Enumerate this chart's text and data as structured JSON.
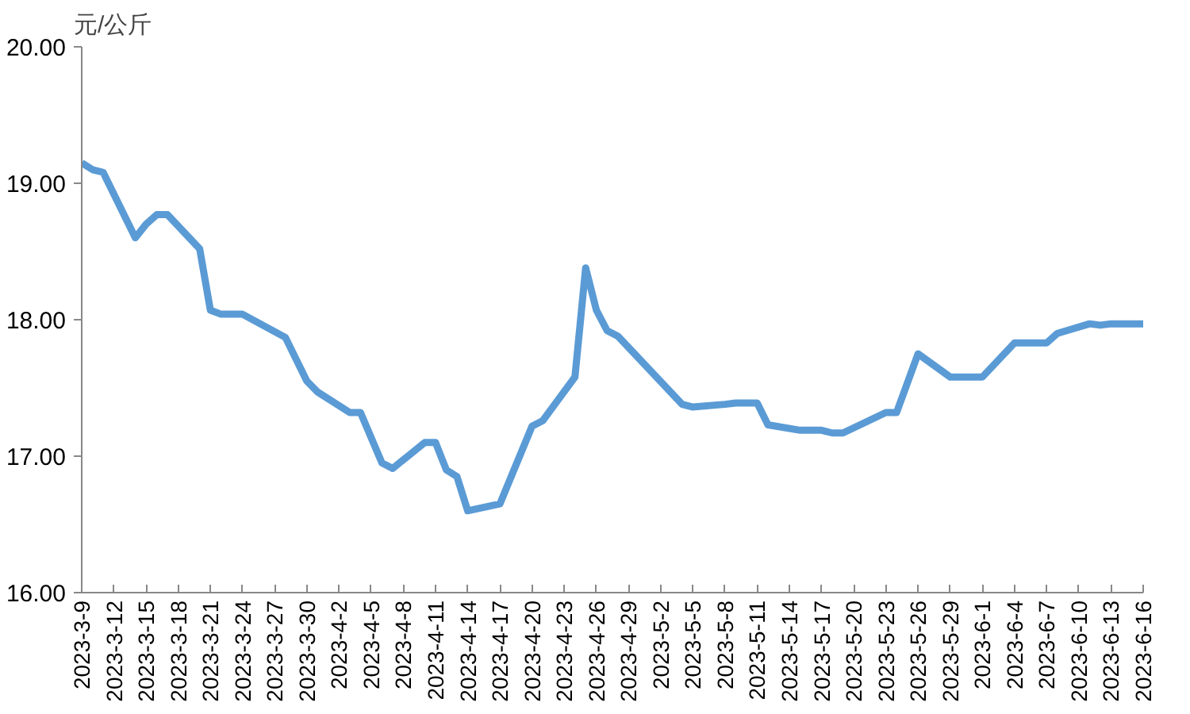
{
  "chart_data": {
    "type": "line",
    "ylabel": "元/公斤",
    "x": [
      "2023-03-09",
      "2023-03-10",
      "2023-03-11",
      "2023-03-14",
      "2023-03-15",
      "2023-03-16",
      "2023-03-17",
      "2023-03-20",
      "2023-03-21",
      "2023-03-22",
      "2023-03-24",
      "2023-03-28",
      "2023-03-30",
      "2023-03-31",
      "2023-04-03",
      "2023-04-04",
      "2023-04-06",
      "2023-04-07",
      "2023-04-10",
      "2023-04-11",
      "2023-04-12",
      "2023-04-13",
      "2023-04-14",
      "2023-04-17",
      "2023-04-20",
      "2023-04-21",
      "2023-04-24",
      "2023-04-25",
      "2023-04-26",
      "2023-04-27",
      "2023-04-28",
      "2023-05-04",
      "2023-05-05",
      "2023-05-08",
      "2023-05-09",
      "2023-05-11",
      "2023-05-12",
      "2023-05-15",
      "2023-05-17",
      "2023-05-18",
      "2023-05-19",
      "2023-05-23",
      "2023-05-24",
      "2023-05-26",
      "2023-05-29",
      "2023-06-01",
      "2023-06-04",
      "2023-06-07",
      "2023-06-08",
      "2023-06-11",
      "2023-06-12",
      "2023-06-13",
      "2023-06-16"
    ],
    "series": [
      {
        "color": "#5b9bd5",
        "values": [
          19.15,
          19.1,
          19.08,
          18.6,
          18.7,
          18.77,
          18.77,
          18.52,
          18.07,
          18.04,
          18.04,
          17.87,
          17.55,
          17.47,
          17.32,
          17.32,
          16.95,
          16.91,
          17.1,
          17.1,
          16.9,
          16.85,
          16.6,
          16.65,
          17.22,
          17.26,
          17.58,
          18.38,
          18.07,
          17.92,
          17.88,
          17.38,
          17.36,
          17.38,
          17.39,
          17.39,
          17.23,
          17.19,
          17.19,
          17.17,
          17.17,
          17.32,
          17.32,
          17.75,
          17.58,
          17.58,
          17.83,
          17.83,
          17.9,
          17.97,
          17.96,
          17.97,
          17.97
        ]
      }
    ],
    "xlim": [
      "2023-03-09",
      "2023-06-16"
    ],
    "xticks": [
      {
        "value": "2023-03-09",
        "label": "2023-3-9"
      },
      {
        "value": "2023-03-12",
        "label": "2023-3-12"
      },
      {
        "value": "2023-03-15",
        "label": "2023-3-15"
      },
      {
        "value": "2023-03-18",
        "label": "2023-3-18"
      },
      {
        "value": "2023-03-21",
        "label": "2023-3-21"
      },
      {
        "value": "2023-03-24",
        "label": "2023-3-24"
      },
      {
        "value": "2023-03-27",
        "label": "2023-3-27"
      },
      {
        "value": "2023-03-30",
        "label": "2023-3-30"
      },
      {
        "value": "2023-04-02",
        "label": "2023-4-2"
      },
      {
        "value": "2023-04-05",
        "label": "2023-4-5"
      },
      {
        "value": "2023-04-08",
        "label": "2023-4-8"
      },
      {
        "value": "2023-04-11",
        "label": "2023-4-11"
      },
      {
        "value": "2023-04-14",
        "label": "2023-4-14"
      },
      {
        "value": "2023-04-17",
        "label": "2023-4-17"
      },
      {
        "value": "2023-04-20",
        "label": "2023-4-20"
      },
      {
        "value": "2023-04-23",
        "label": "2023-4-23"
      },
      {
        "value": "2023-04-26",
        "label": "2023-4-26"
      },
      {
        "value": "2023-04-29",
        "label": "2023-4-29"
      },
      {
        "value": "2023-05-02",
        "label": "2023-5-2"
      },
      {
        "value": "2023-05-05",
        "label": "2023-5-5"
      },
      {
        "value": "2023-05-08",
        "label": "2023-5-8"
      },
      {
        "value": "2023-05-11",
        "label": "2023-5-11"
      },
      {
        "value": "2023-05-14",
        "label": "2023-5-14"
      },
      {
        "value": "2023-05-17",
        "label": "2023-5-17"
      },
      {
        "value": "2023-05-20",
        "label": "2023-5-20"
      },
      {
        "value": "2023-05-23",
        "label": "2023-5-23"
      },
      {
        "value": "2023-05-26",
        "label": "2023-5-26"
      },
      {
        "value": "2023-05-29",
        "label": "2023-5-29"
      },
      {
        "value": "2023-06-01",
        "label": "2023-6-1"
      },
      {
        "value": "2023-06-04",
        "label": "2023-6-4"
      },
      {
        "value": "2023-06-07",
        "label": "2023-6-7"
      },
      {
        "value": "2023-06-10",
        "label": "2023-6-10"
      },
      {
        "value": "2023-06-13",
        "label": "2023-6-13"
      },
      {
        "value": "2023-06-16",
        "label": "2023-6-16"
      }
    ],
    "ylim": [
      16,
      20
    ],
    "yticks": [
      {
        "value": 16,
        "label": "16.00"
      },
      {
        "value": 17,
        "label": "17.00"
      },
      {
        "value": 18,
        "label": "18.00"
      },
      {
        "value": 19,
        "label": "19.00"
      },
      {
        "value": 20,
        "label": "20.00"
      }
    ],
    "grid": false,
    "marker": "none",
    "line_style": "solid"
  }
}
